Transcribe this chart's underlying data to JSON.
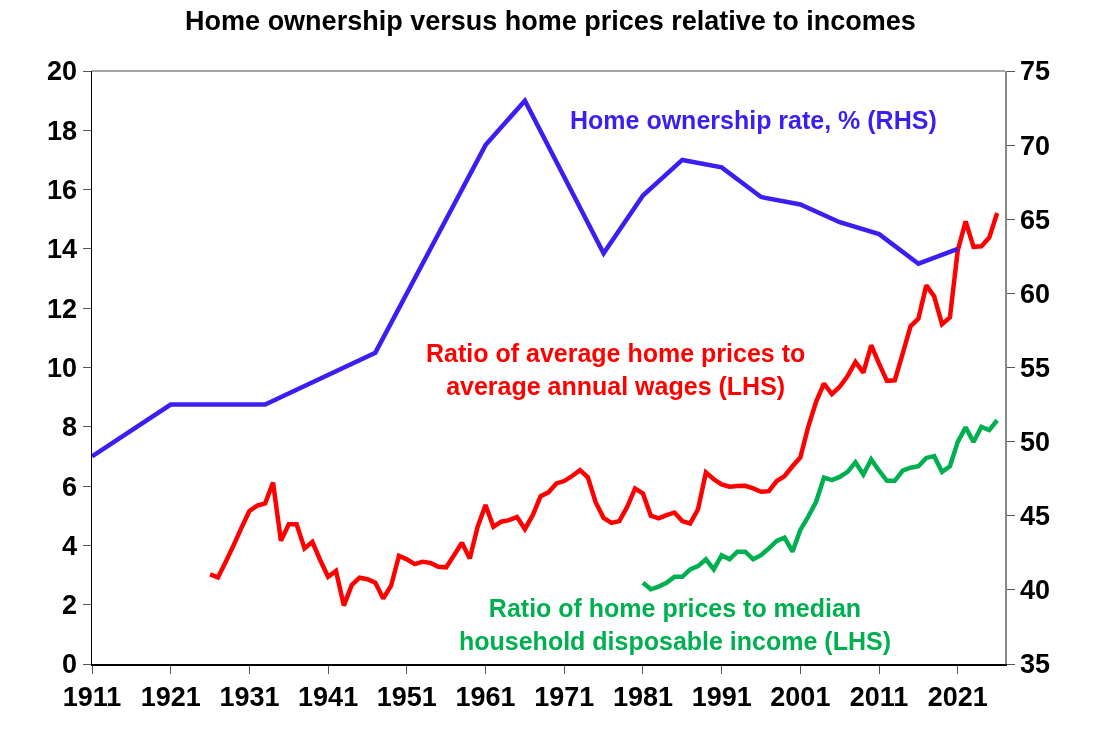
{
  "chart_data": {
    "type": "line",
    "title": "Home ownership versus home prices relative to incomes",
    "xlim": [
      1911,
      2027
    ],
    "xticks": [
      1911,
      1921,
      1931,
      1941,
      1951,
      1961,
      1971,
      1981,
      1991,
      2001,
      2011,
      2021
    ],
    "ylim": [
      0,
      20
    ],
    "yticks": [
      0,
      2,
      4,
      6,
      8,
      10,
      12,
      14,
      16,
      18,
      20
    ],
    "y2lim": [
      35,
      75
    ],
    "y2ticks": [
      35,
      40,
      45,
      50,
      55,
      60,
      65,
      70,
      75
    ],
    "series": [
      {
        "name": "Home ownership rate, % (RHS)",
        "color": "#3b1ef2",
        "axis": "y2",
        "x": [
          1911,
          1921,
          1933,
          1947,
          1961,
          1966,
          1976,
          1981,
          1986,
          1991,
          1996,
          2001,
          2006,
          2011,
          2016,
          2021
        ],
        "values": [
          49,
          52.5,
          52.5,
          56,
          70,
          73,
          62.7,
          66.6,
          69,
          68.5,
          66.5,
          66,
          64.8,
          64,
          62,
          63
        ]
      },
      {
        "name": "Ratio of average home prices to\naverage annual wages (LHS)",
        "color": "#ff0000",
        "x": [
          1926,
          1927,
          1928,
          1929,
          1930,
          1931,
          1932,
          1933,
          1934,
          1935,
          1936,
          1937,
          1938,
          1939,
          1940,
          1941,
          1942,
          1943,
          1944,
          1945,
          1946,
          1947,
          1948,
          1949,
          1950,
          1951,
          1952,
          1953,
          1954,
          1955,
          1956,
          1957,
          1958,
          1959,
          1960,
          1961,
          1962,
          1963,
          1964,
          1965,
          1966,
          1967,
          1968,
          1969,
          1970,
          1971,
          1972,
          1973,
          1974,
          1975,
          1976,
          1977,
          1978,
          1979,
          1980,
          1981,
          1982,
          1983,
          1984,
          1985,
          1986,
          1987,
          1988,
          1989,
          1990,
          1991,
          1992,
          1993,
          1994,
          1995,
          1996,
          1997,
          1998,
          1999,
          2000,
          2001,
          2002,
          2003,
          2004,
          2005,
          2006,
          2007,
          2008,
          2009,
          2010,
          2011,
          2012,
          2013,
          2014,
          2015,
          2016,
          2017,
          2018,
          2019,
          2020,
          2021,
          2022,
          2023,
          2024,
          2025,
          2026
        ],
        "values": [
          3.02,
          2.92,
          3.45,
          4.01,
          4.6,
          5.16,
          5.34,
          5.42,
          6.12,
          4.16,
          4.71,
          4.71,
          3.9,
          4.12,
          3.5,
          2.94,
          3.14,
          1.97,
          2.66,
          2.91,
          2.86,
          2.74,
          2.21,
          2.64,
          3.65,
          3.53,
          3.37,
          3.45,
          3.41,
          3.28,
          3.26,
          3.67,
          4.09,
          3.56,
          4.63,
          5.36,
          4.63,
          4.8,
          4.85,
          4.96,
          4.55,
          5.02,
          5.66,
          5.79,
          6.09,
          6.17,
          6.34,
          6.54,
          6.3,
          5.45,
          4.93,
          4.76,
          4.82,
          5.3,
          5.92,
          5.75,
          5.0,
          4.91,
          5.02,
          5.11,
          4.82,
          4.74,
          5.22,
          6.46,
          6.23,
          6.06,
          5.98,
          6.0,
          6.01,
          5.92,
          5.81,
          5.83,
          6.17,
          6.34,
          6.67,
          6.97,
          8.0,
          8.84,
          9.46,
          9.1,
          9.35,
          9.71,
          10.19,
          9.83,
          10.75,
          10.13,
          9.55,
          9.57,
          10.47,
          11.39,
          11.65,
          12.77,
          12.4,
          11.46,
          11.69,
          13.95,
          14.93,
          14.07,
          14.09,
          14.38,
          15.21
        ]
      },
      {
        "name": "Ratio of home prices to median\nhousehold disposable income (LHS)",
        "color": "#00b050",
        "x": [
          1981,
          1982,
          1983,
          1984,
          1985,
          1986,
          1987,
          1988,
          1989,
          1990,
          1991,
          1992,
          1993,
          1994,
          1995,
          1996,
          1997,
          1998,
          1999,
          2000,
          2001,
          2002,
          2003,
          2004,
          2005,
          2006,
          2007,
          2008,
          2009,
          2010,
          2011,
          2012,
          2013,
          2014,
          2015,
          2016,
          2017,
          2018,
          2019,
          2020,
          2021,
          2022,
          2023,
          2024,
          2025,
          2026
        ],
        "values": [
          2.74,
          2.52,
          2.61,
          2.74,
          2.94,
          2.94,
          3.19,
          3.3,
          3.53,
          3.19,
          3.67,
          3.53,
          3.79,
          3.79,
          3.53,
          3.67,
          3.9,
          4.15,
          4.26,
          3.79,
          4.52,
          4.97,
          5.47,
          6.29,
          6.2,
          6.31,
          6.48,
          6.8,
          6.39,
          6.9,
          6.52,
          6.18,
          6.18,
          6.52,
          6.62,
          6.67,
          6.95,
          7.01,
          6.48,
          6.67,
          7.49,
          7.98,
          7.49,
          8.0,
          7.89,
          8.22
        ]
      }
    ]
  }
}
